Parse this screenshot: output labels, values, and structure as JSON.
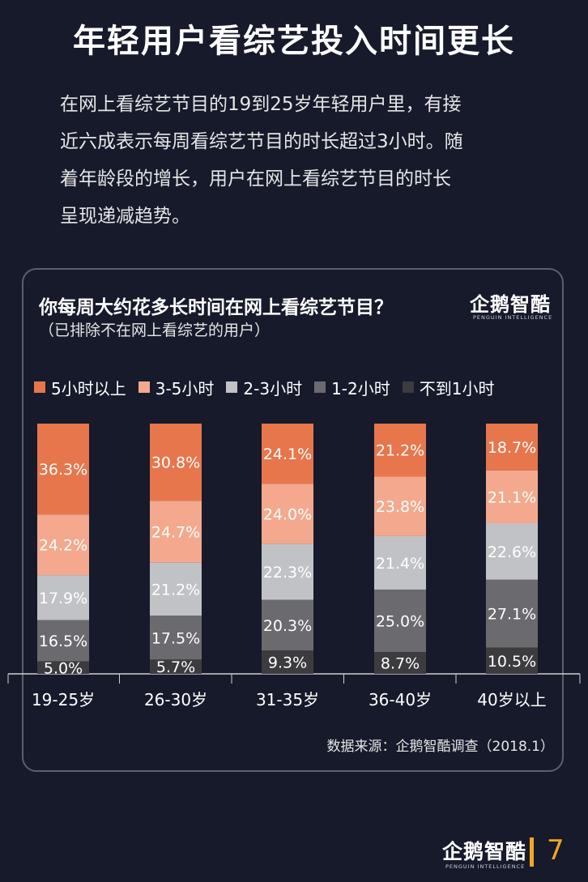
{
  "header": {
    "title": "年轻用户看综艺投入时间更长",
    "intro_lines": [
      "在网上看综艺节目的19到25岁年轻用户里，有接",
      "近六成表示每周看综艺节目的时长超过3小时。随",
      "着年龄段的增长，用户在网上看综艺节目的时长",
      "呈现递减趋势。"
    ]
  },
  "brand": {
    "name": "企鹅智酷",
    "tagline": "PENGUIN INTELLIGENCE"
  },
  "footer": {
    "source": "数据来源：企鹅智酷调查（2018.1）",
    "page_number": "7",
    "accent_color": "#f5a623"
  },
  "chart_data": {
    "type": "bar",
    "stacked": true,
    "normalized": true,
    "title": "你每周大约花多长时间在网上看综艺节目？",
    "subtitle": "（已排除不在网上看综艺的用户）",
    "legend_position": "top",
    "categories": [
      "19-25岁",
      "26-30岁",
      "31-35岁",
      "36-40岁",
      "40岁以上"
    ],
    "series": [
      {
        "name": "5小时以上",
        "color": "#e8764c",
        "values": [
          36.3,
          30.8,
          24.1,
          21.2,
          18.7
        ]
      },
      {
        "name": "3-5小时",
        "color": "#f4a98e",
        "values": [
          24.2,
          24.7,
          24.0,
          23.8,
          21.1
        ]
      },
      {
        "name": "2-3小时",
        "color": "#c1c2c6",
        "values": [
          17.9,
          21.2,
          22.3,
          21.4,
          22.6
        ]
      },
      {
        "name": "1-2小时",
        "color": "#6b6b6f",
        "values": [
          16.5,
          17.5,
          20.3,
          25.0,
          27.1
        ]
      },
      {
        "name": "不到1小时",
        "color": "#3c3c3f",
        "values": [
          5.0,
          5.7,
          9.3,
          8.7,
          10.5
        ]
      }
    ],
    "value_suffix": "%"
  }
}
